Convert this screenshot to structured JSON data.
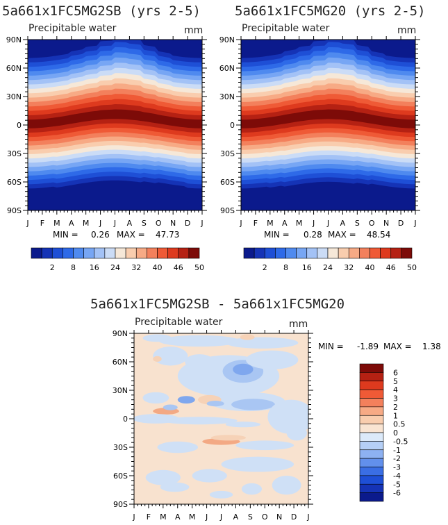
{
  "chart_data": [
    {
      "type": "heatmap",
      "title": "5a661x1FC5MG2SB (yrs 2-5)",
      "subtitle": "Precipitable water",
      "units": "mm",
      "x_ticks": [
        "J",
        "F",
        "M",
        "A",
        "M",
        "J",
        "J",
        "A",
        "S",
        "O",
        "N",
        "D",
        "J"
      ],
      "y_ticks": [
        "90N",
        "60N",
        "30N",
        "0",
        "30S",
        "60S",
        "90S"
      ],
      "ylim": [
        -90,
        90
      ],
      "min_label": "MIN =",
      "min_value": "0.26",
      "max_label": "MAX =",
      "max_value": "47.73",
      "colorbar_labels": [
        "2",
        "8",
        "16",
        "24",
        "32",
        "40",
        "46",
        "50"
      ],
      "colorbar_colors": [
        "#0b1a8c",
        "#1533b6",
        "#1e4fd6",
        "#2e6ae8",
        "#4f8aef",
        "#77a6f4",
        "#a3c2f6",
        "#cbdcf6",
        "#f6e8d8",
        "#f9cdae",
        "#f7aa85",
        "#f3805c",
        "#ef5a36",
        "#de3a1e",
        "#b52113",
        "#7d0b08"
      ],
      "monthly_tropical_max_mm": [
        46,
        46,
        47,
        47,
        47,
        47,
        47,
        47,
        46,
        45,
        45,
        46,
        46
      ],
      "monthly_polar_north_mm": [
        2,
        2,
        2,
        4,
        6,
        10,
        14,
        13,
        8,
        4,
        2,
        2,
        2
      ]
    },
    {
      "type": "heatmap",
      "title": "5a661x1FC5MG20 (yrs 2-5)",
      "subtitle": "Precipitable water",
      "units": "mm",
      "x_ticks": [
        "J",
        "F",
        "M",
        "A",
        "M",
        "J",
        "J",
        "A",
        "S",
        "O",
        "N",
        "D",
        "J"
      ],
      "y_ticks": [
        "90N",
        "60N",
        "30N",
        "0",
        "30S",
        "60S",
        "90S"
      ],
      "ylim": [
        -90,
        90
      ],
      "min_label": "MIN =",
      "min_value": "0.28",
      "max_label": "MAX =",
      "max_value": "48.54",
      "colorbar_labels": [
        "2",
        "8",
        "16",
        "24",
        "32",
        "40",
        "46",
        "50"
      ],
      "colorbar_colors": [
        "#0b1a8c",
        "#1533b6",
        "#1e4fd6",
        "#2e6ae8",
        "#4f8aef",
        "#77a6f4",
        "#a3c2f6",
        "#cbdcf6",
        "#f6e8d8",
        "#f9cdae",
        "#f7aa85",
        "#f3805c",
        "#ef5a36",
        "#de3a1e",
        "#b52113",
        "#7d0b08"
      ],
      "monthly_tropical_max_mm": [
        46,
        46,
        47,
        48,
        48,
        48,
        48,
        48,
        47,
        46,
        46,
        46,
        46
      ],
      "monthly_polar_north_mm": [
        2,
        2,
        2,
        4,
        6,
        10,
        14,
        13,
        8,
        4,
        2,
        2,
        2
      ]
    },
    {
      "type": "heatmap",
      "title": "5a661x1FC5MG2SB - 5a661x1FC5MG20",
      "subtitle": "Precipitable water",
      "units": "mm",
      "x_ticks": [
        "J",
        "F",
        "M",
        "A",
        "M",
        "J",
        "J",
        "A",
        "S",
        "O",
        "N",
        "D",
        "J"
      ],
      "y_ticks": [
        "90N",
        "60N",
        "30N",
        "0",
        "30S",
        "60S",
        "90S"
      ],
      "ylim": [
        -90,
        90
      ],
      "min_label": "MIN =",
      "min_value": "-1.89",
      "max_label": "MAX =",
      "max_value": "1.38",
      "colorbar_labels": [
        "6",
        "5",
        "4",
        "3",
        "2",
        "1",
        "0.5",
        "0",
        "-0.5",
        "-1",
        "-2",
        "-3",
        "-4",
        "-5",
        "-6"
      ],
      "colorbar_colors": [
        "#7d0b08",
        "#b52113",
        "#de3a1e",
        "#ef5a36",
        "#f3805c",
        "#f7aa85",
        "#f9cdae",
        "#f9e4d2",
        "#dceafa",
        "#b5cff6",
        "#8db1f2",
        "#6290ec",
        "#3a6ee4",
        "#1e4fd6",
        "#1533b6",
        "#0b1a8c"
      ],
      "dominant_value_range": [
        -0.5,
        0.5
      ]
    }
  ]
}
